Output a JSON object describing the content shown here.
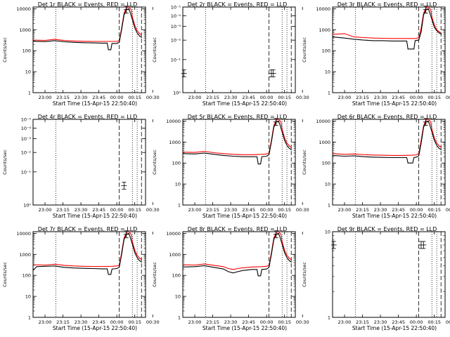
{
  "figure": {
    "x_axis_title": "Start Time (15-Apr-15 22:50:40)",
    "y_axis_title": "Counts/sec",
    "x_tick_labels": [
      "23:00",
      "23:15",
      "23:30",
      "23:45",
      "00:00",
      "00:15",
      "00:30"
    ],
    "colors": {
      "events": "#000000",
      "lld": "#ff0000",
      "background": "#ffffff"
    }
  },
  "chart_data": [
    {
      "type": "line",
      "title": "Det 1r BLACK = Events, RED = LLD",
      "xlabel": "Start Time (15-Apr-15 22:50:40)",
      "ylabel": "Counts/sec",
      "xlim": [
        -5,
        42
      ],
      "ylim": [
        1,
        12000
      ],
      "y_scale": "log",
      "yticks": [
        1,
        10,
        100,
        1000,
        10000
      ],
      "ytick_labels": [
        "1",
        "10",
        "100",
        "1000",
        "10000"
      ],
      "vlines_dotted": [
        4.5,
        36.5,
        38.5
      ],
      "vlines_dashed": [
        31,
        40.3
      ],
      "series": [
        {
          "name": "Events",
          "color": "black",
          "x": [
            -5,
            0,
            4,
            8,
            12,
            16,
            20,
            24,
            26,
            26.5,
            27.5,
            28,
            30,
            31,
            32,
            33,
            34,
            35,
            35.5,
            36.5,
            37.5,
            38.5,
            39.5,
            40.5
          ],
          "y": [
            280,
            270,
            300,
            265,
            250,
            240,
            235,
            230,
            230,
            110,
            110,
            220,
            220,
            250,
            1000,
            5000,
            9000,
            10000,
            7000,
            3000,
            1200,
            700,
            500,
            420
          ]
        },
        {
          "name": "LLD",
          "color": "red",
          "x": [
            -5,
            0,
            4,
            8,
            12,
            16,
            20,
            24,
            28,
            30,
            31,
            32,
            33,
            34,
            35,
            36,
            36.5,
            37.5,
            38.5,
            39.5,
            40.5
          ],
          "y": [
            320,
            310,
            350,
            305,
            290,
            280,
            275,
            275,
            275,
            275,
            300,
            1200,
            6000,
            11000,
            12000,
            9000,
            4000,
            1600,
            900,
            650,
            550
          ]
        }
      ],
      "error_bars": [
        {
          "x": 34,
          "y": 9000
        }
      ]
    },
    {
      "type": "line",
      "title": "Det 2r BLACK = Events, RED = LLD",
      "xlabel": "Start Time (15-Apr-15 22:50:40)",
      "ylabel": "Counts/sec",
      "xlim": [
        -5,
        42
      ],
      "ylim": [
        1,
        6
      ],
      "y_scale": "log",
      "yticks": [
        1,
        2,
        3,
        4,
        5,
        6
      ],
      "ytick_labels": [
        "10⁰",
        "10⁻¹",
        "10⁻²",
        "10⁻³",
        "10⁻⁴",
        "10⁻⁵"
      ],
      "vlines_dotted": [
        4.5,
        36.5,
        38.5
      ],
      "vlines_dashed": [
        31,
        40.3
      ],
      "series": [],
      "error_bars": [
        {
          "x": -4.5,
          "y": 1.5
        },
        {
          "x": 32,
          "y": 1.5
        },
        {
          "x": 32.8,
          "y": 1.5
        }
      ]
    },
    {
      "type": "line",
      "title": "Det 3r BLACK = Events, RED = LLD",
      "xlabel": "Start Time (15-Apr-15 22:50:40)",
      "ylabel": "Counts/sec",
      "xlim": [
        -5,
        42
      ],
      "ylim": [
        1,
        12000
      ],
      "y_scale": "log",
      "yticks": [
        1,
        10,
        100,
        1000,
        10000
      ],
      "ytick_labels": [
        "1",
        "10",
        "100",
        "1000",
        "10000"
      ],
      "vlines_dotted": [
        4.5,
        36.5,
        38.5
      ],
      "vlines_dashed": [
        31,
        40.3
      ],
      "series": [
        {
          "name": "Events",
          "color": "black",
          "x": [
            -5,
            0,
            4,
            8,
            12,
            16,
            20,
            24,
            26,
            26.5,
            29,
            29.5,
            31,
            32,
            33,
            34,
            35,
            35.5,
            36.5,
            37.5,
            38.5,
            39.5,
            40.5
          ],
          "y": [
            450,
            400,
            350,
            320,
            300,
            300,
            290,
            290,
            290,
            120,
            120,
            300,
            320,
            800,
            5000,
            9000,
            10000,
            7000,
            3000,
            1300,
            900,
            700,
            600
          ]
        },
        {
          "name": "LLD",
          "color": "red",
          "x": [
            -5,
            0,
            4,
            8,
            12,
            16,
            20,
            24,
            28,
            30,
            31,
            32,
            33,
            34,
            35,
            36,
            36.5,
            37.5,
            38.5,
            39.5,
            40.5
          ],
          "y": [
            600,
            650,
            450,
            420,
            400,
            390,
            380,
            380,
            380,
            380,
            420,
            1200,
            6000,
            11000,
            12000,
            9000,
            4000,
            1700,
            1000,
            800,
            700
          ]
        }
      ],
      "error_bars": [
        {
          "x": 34,
          "y": 9000
        }
      ]
    },
    {
      "type": "line",
      "title": "Det 4r BLACK = Events, RED = LLD",
      "xlabel": "Start Time (15-Apr-15 22:50:40)",
      "ylabel": "Counts/sec",
      "xlim": [
        -5,
        42
      ],
      "ylim": [
        1,
        6
      ],
      "y_scale": "log",
      "yticks": [
        1,
        2,
        3,
        4,
        5,
        6
      ],
      "ytick_labels": [
        "10⁰",
        "10⁻¹",
        "10⁻²",
        "10⁻³",
        "10⁻⁴",
        "10⁻⁵"
      ],
      "vlines_dotted": [
        4.5,
        36.5,
        38.5
      ],
      "vlines_dashed": [
        31,
        40.3
      ],
      "series": [],
      "error_bars": [
        {
          "x": 33,
          "y": 1.5
        }
      ]
    },
    {
      "type": "line",
      "title": "Det 5r BLACK = Events, RED = LLD",
      "xlabel": "Start Time (15-Apr-15 22:50:40)",
      "ylabel": "Counts/sec",
      "xlim": [
        -5,
        42
      ],
      "ylim": [
        1,
        12000
      ],
      "y_scale": "log",
      "yticks": [
        1,
        10,
        100,
        1000,
        10000
      ],
      "ytick_labels": [
        "1",
        "10",
        "100",
        "1000",
        "10000"
      ],
      "vlines_dotted": [
        4.5,
        36.5,
        38.5
      ],
      "vlines_dashed": [
        31,
        40.3
      ],
      "series": [
        {
          "name": "Events",
          "color": "black",
          "x": [
            -5,
            0,
            4,
            8,
            12,
            16,
            20,
            24,
            26,
            26.5,
            27.5,
            28,
            30,
            31,
            32,
            33,
            34,
            35,
            35.5,
            36.5,
            37.5,
            38.5,
            39.5,
            40.5
          ],
          "y": [
            280,
            270,
            300,
            260,
            230,
            210,
            200,
            200,
            200,
            90,
            90,
            200,
            210,
            250,
            1000,
            5000,
            9000,
            10000,
            7000,
            3000,
            1200,
            700,
            500,
            420
          ]
        },
        {
          "name": "LLD",
          "color": "red",
          "x": [
            -5,
            0,
            4,
            8,
            12,
            16,
            20,
            24,
            28,
            30,
            31,
            32,
            33,
            34,
            35,
            36,
            36.5,
            37.5,
            38.5,
            39.5,
            40.5
          ],
          "y": [
            330,
            320,
            360,
            310,
            280,
            260,
            250,
            250,
            260,
            270,
            300,
            1200,
            6000,
            11000,
            12000,
            9000,
            4000,
            1600,
            900,
            650,
            550
          ]
        }
      ],
      "error_bars": [
        {
          "x": 34,
          "y": 9000
        }
      ]
    },
    {
      "type": "line",
      "title": "Det 6r BLACK = Events, RED = LLD",
      "xlabel": "Start Time (15-Apr-15 22:50:40)",
      "ylabel": "Counts/sec",
      "xlim": [
        -5,
        42
      ],
      "ylim": [
        1,
        12000
      ],
      "y_scale": "log",
      "yticks": [
        1,
        10,
        100,
        1000,
        10000
      ],
      "ytick_labels": [
        "1",
        "10",
        "100",
        "1000",
        "10000"
      ],
      "vlines_dotted": [
        4.5,
        36.5,
        38.5
      ],
      "vlines_dashed": [
        31,
        40.3
      ],
      "series": [
        {
          "name": "Events",
          "color": "black",
          "x": [
            -5,
            0,
            4,
            8,
            12,
            16,
            20,
            24,
            26,
            26.5,
            28.5,
            29,
            30,
            31,
            32,
            33,
            34,
            35,
            35.5,
            36.5,
            37.5,
            38.5,
            39.5,
            40.5
          ],
          "y": [
            230,
            210,
            220,
            200,
            190,
            185,
            180,
            180,
            180,
            100,
            100,
            180,
            190,
            220,
            900,
            5000,
            9000,
            10000,
            7000,
            3000,
            1200,
            700,
            500,
            420
          ]
        },
        {
          "name": "LLD",
          "color": "red",
          "x": [
            -5,
            0,
            4,
            8,
            12,
            16,
            20,
            24,
            28,
            30,
            31,
            32,
            33,
            34,
            35,
            36,
            36.5,
            37.5,
            38.5,
            39.5,
            40.5
          ],
          "y": [
            280,
            260,
            270,
            250,
            240,
            235,
            230,
            230,
            235,
            245,
            280,
            1200,
            6000,
            11000,
            12000,
            9000,
            4000,
            1600,
            900,
            650,
            550
          ]
        }
      ],
      "error_bars": [
        {
          "x": 34,
          "y": 9000
        }
      ]
    },
    {
      "type": "line",
      "title": "Det 7r BLACK = Events, RED = LLD",
      "xlabel": "Start Time (15-Apr-15 22:50:40)",
      "ylabel": "Counts/sec",
      "xlim": [
        -5,
        42
      ],
      "ylim": [
        1,
        12000
      ],
      "y_scale": "log",
      "yticks": [
        1,
        10,
        100,
        1000,
        10000
      ],
      "ytick_labels": [
        "1",
        "10",
        "100",
        "1000",
        "10000"
      ],
      "vlines_dotted": [
        4.5,
        36.5,
        38.5
      ],
      "vlines_dashed": [
        31,
        40.3
      ],
      "series": [
        {
          "name": "Events",
          "color": "black",
          "x": [
            -5,
            -3.5,
            0,
            4,
            8,
            12,
            16,
            20,
            24,
            26,
            26.5,
            27.5,
            28,
            30,
            31,
            32,
            33,
            34,
            35,
            35.5,
            36.5,
            37.5,
            38.5,
            39.5,
            40.5
          ],
          "y": [
            170,
            260,
            270,
            280,
            240,
            225,
            215,
            210,
            205,
            205,
            110,
            110,
            200,
            210,
            240,
            1000,
            5000,
            9000,
            10000,
            7000,
            3000,
            1200,
            700,
            500,
            420
          ]
        },
        {
          "name": "LLD",
          "color": "red",
          "x": [
            -5,
            0,
            4,
            8,
            12,
            16,
            20,
            24,
            28,
            30,
            31,
            32,
            33,
            34,
            35,
            36,
            36.5,
            37.5,
            38.5,
            39.5,
            40.5
          ],
          "y": [
            320,
            310,
            340,
            300,
            280,
            270,
            265,
            265,
            270,
            280,
            300,
            1200,
            6000,
            11000,
            12000,
            9000,
            4000,
            1600,
            900,
            650,
            550
          ]
        }
      ],
      "error_bars": [
        {
          "x": 34,
          "y": 9000
        }
      ]
    },
    {
      "type": "line",
      "title": "Det 8r BLACK = Events, RED = LLD",
      "xlabel": "Start Time (15-Apr-15 22:50:40)",
      "ylabel": "Counts/sec",
      "xlim": [
        -5,
        42
      ],
      "ylim": [
        1,
        12000
      ],
      "y_scale": "log",
      "yticks": [
        1,
        10,
        100,
        1000,
        10000
      ],
      "ytick_labels": [
        "1",
        "10",
        "100",
        "1000",
        "10000"
      ],
      "vlines_dotted": [
        4.5,
        36.5,
        38.5
      ],
      "vlines_dashed": [
        31,
        40.3
      ],
      "series": [
        {
          "name": "Events",
          "color": "black",
          "x": [
            -5,
            0,
            4,
            8,
            12,
            14,
            16,
            18,
            20,
            24,
            26,
            26.5,
            27.5,
            28,
            30,
            31,
            32,
            33,
            34,
            35,
            35.5,
            36.5,
            37.5,
            38.5,
            39.5,
            40.5
          ],
          "y": [
            250,
            260,
            290,
            240,
            200,
            150,
            130,
            150,
            170,
            190,
            190,
            95,
            95,
            190,
            200,
            240,
            1000,
            5000,
            9000,
            10000,
            7000,
            3000,
            1200,
            700,
            500,
            420
          ]
        },
        {
          "name": "LLD",
          "color": "red",
          "x": [
            -5,
            0,
            4,
            8,
            12,
            14,
            16,
            18,
            20,
            24,
            28,
            30,
            31,
            32,
            33,
            34,
            35,
            36,
            36.5,
            37.5,
            38.5,
            39.5,
            40.5
          ],
          "y": [
            320,
            310,
            350,
            300,
            260,
            210,
            190,
            210,
            230,
            250,
            260,
            270,
            300,
            1200,
            6000,
            11000,
            12000,
            9000,
            4000,
            1600,
            900,
            650,
            550
          ]
        }
      ],
      "error_bars": [
        {
          "x": 34,
          "y": 9000
        }
      ]
    },
    {
      "type": "line",
      "title": "Det 9r BLACK = Events, RED = LLD",
      "xlabel": "Start Time (15-Apr-15 22:50:40)",
      "ylabel": "Counts/sec",
      "xlim": [
        -5,
        42
      ],
      "ylim": [
        1,
        10
      ],
      "y_scale": "log",
      "yticks": [
        1,
        10
      ],
      "ytick_labels": [
        "1",
        "10"
      ],
      "vlines_dotted": [
        4.5,
        36.5,
        38.5
      ],
      "vlines_dashed": [
        31,
        40.3
      ],
      "series": [],
      "error_bars": [
        {
          "x": -4.5,
          "y": 7
        },
        {
          "x": 32,
          "y": 7
        },
        {
          "x": 33,
          "y": 7
        }
      ]
    }
  ]
}
